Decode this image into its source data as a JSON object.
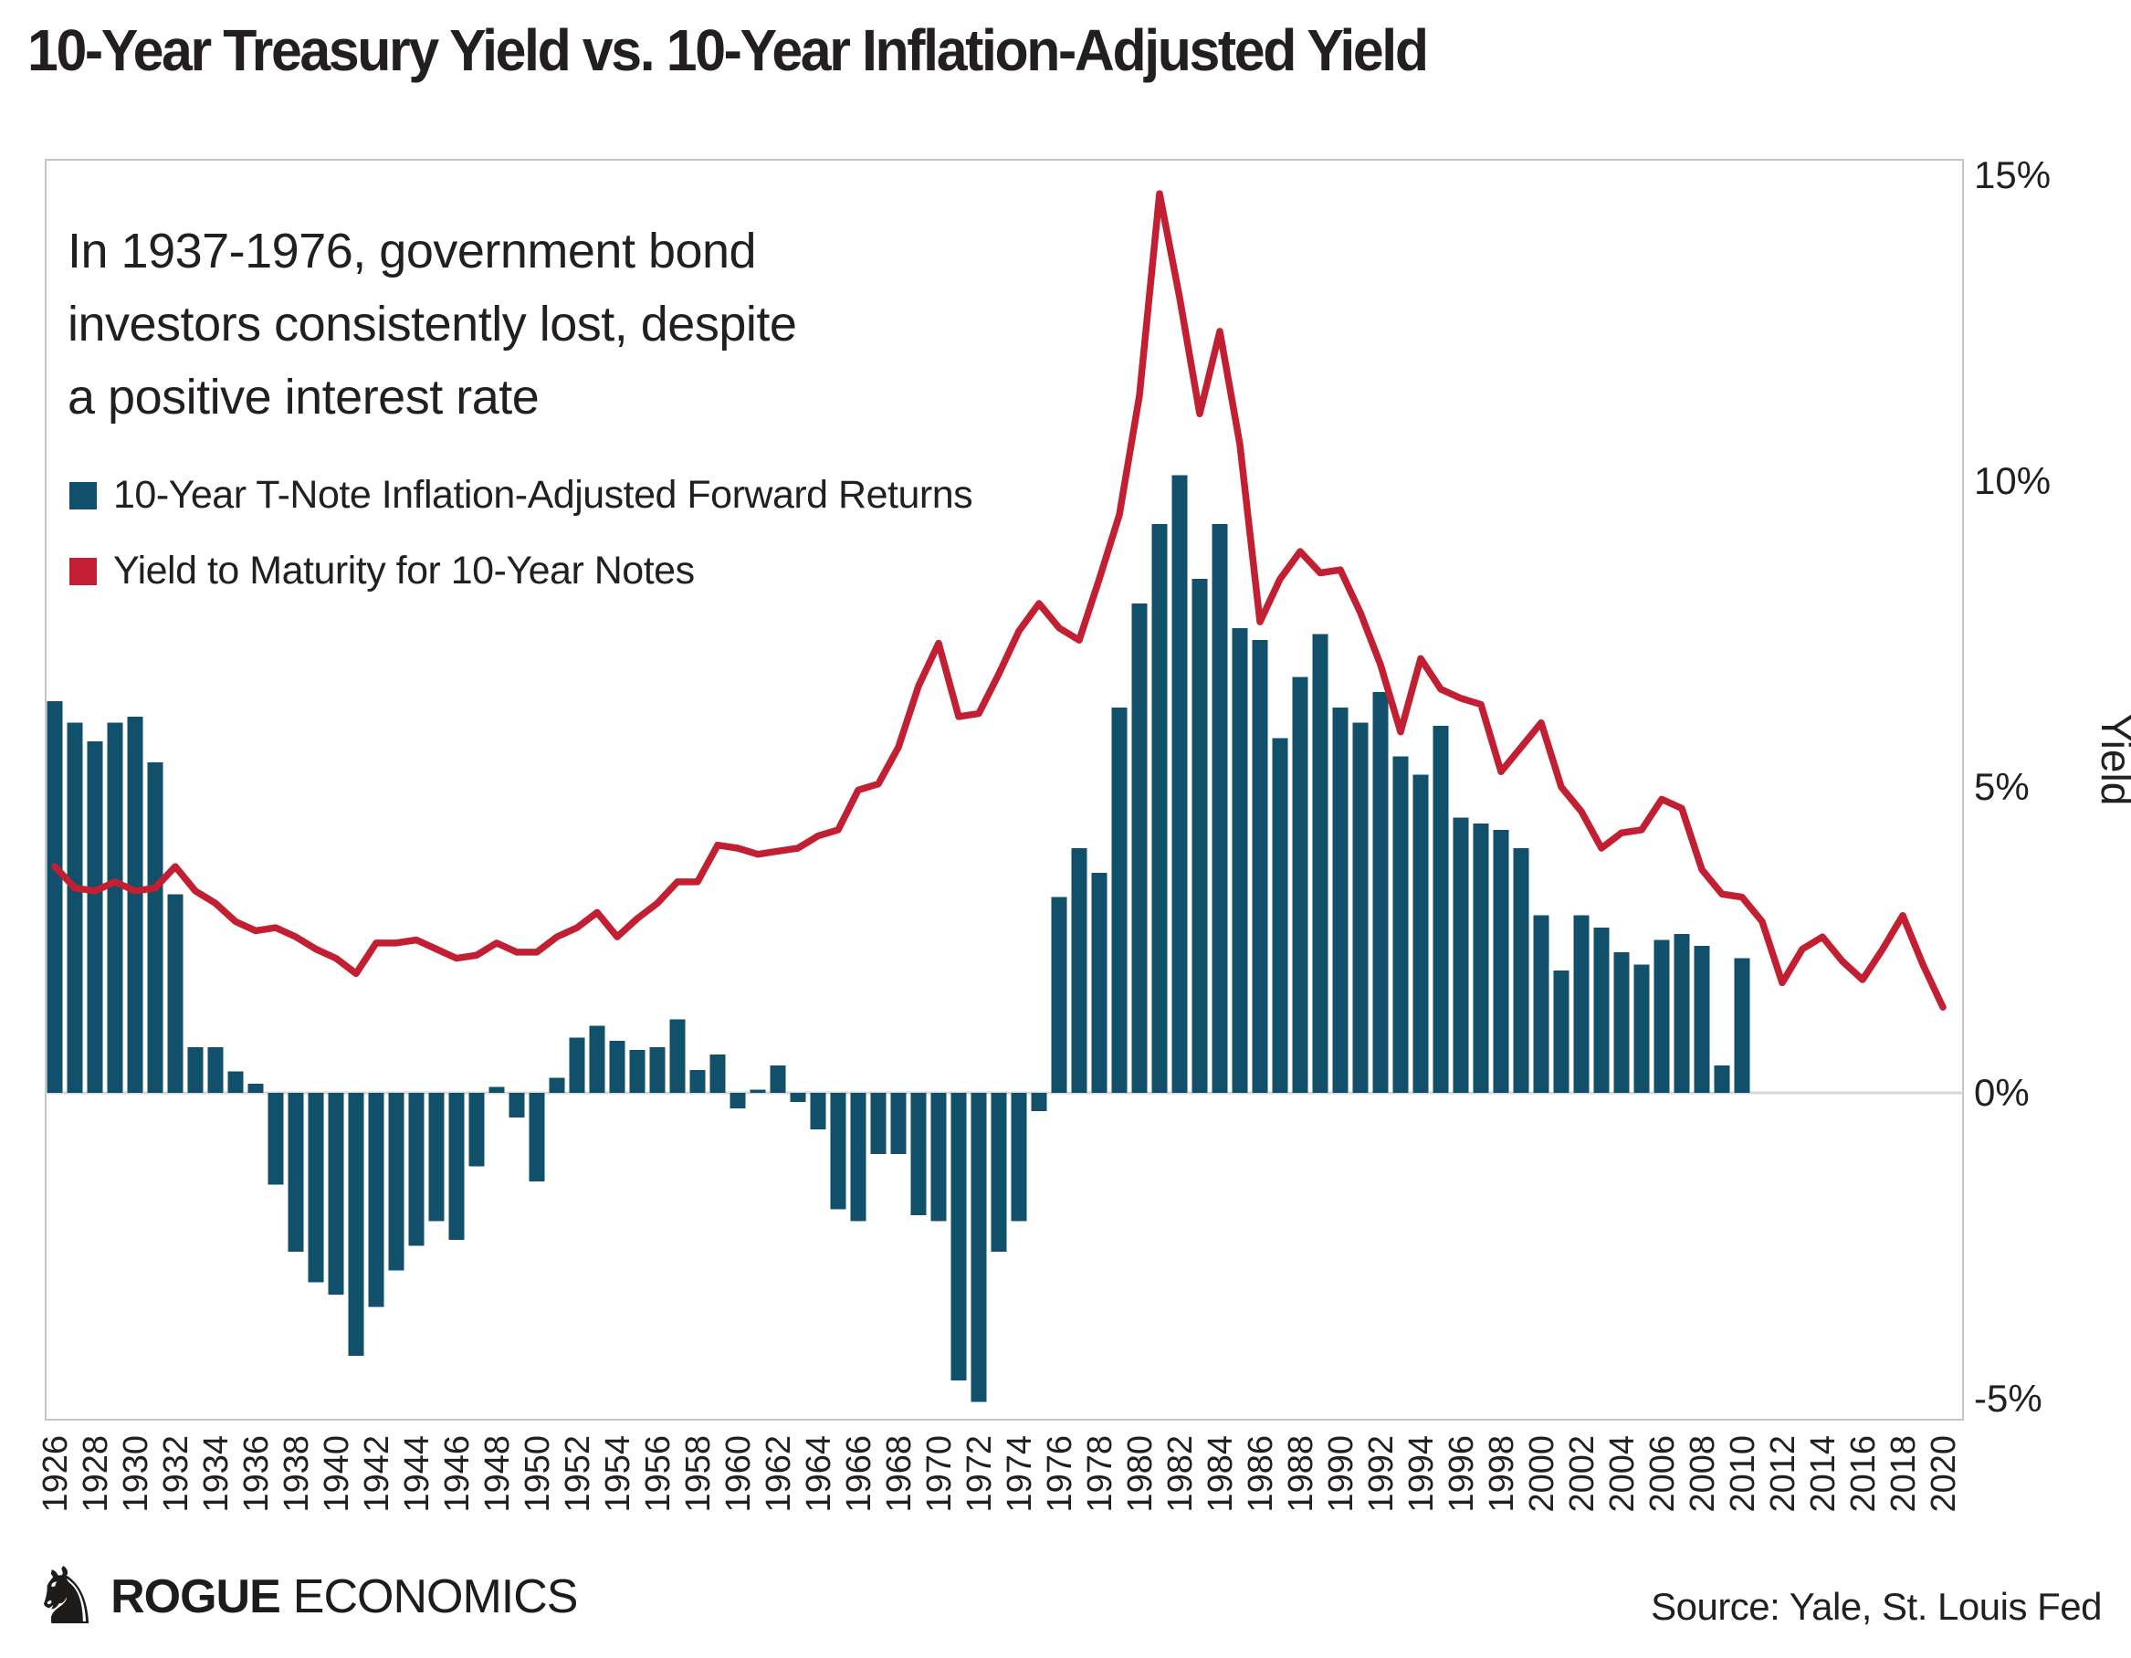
{
  "header": {
    "title": "10-Year Treasury Yield vs. 10-Year Inflation-Adjusted Yield"
  },
  "annotation": {
    "line1": "In 1937-1976, government bond",
    "line2": "investors consistently lost, despite",
    "line3": "a positive interest rate"
  },
  "legend": {
    "items": [
      {
        "label": "10-Year T-Note Inflation-Adjusted Forward Returns",
        "color": "#11506a"
      },
      {
        "label": "Yield to Maturity for 10-Year Notes",
        "color": "#c22032"
      }
    ]
  },
  "footer": {
    "knight_icon": "♞",
    "logo_text_bold": "ROGUE",
    "logo_text_light": "ECONOMICS",
    "source": "Source: Yale, St. Louis Fed"
  },
  "chart_data": {
    "type": "bar+line",
    "title": "10-Year Treasury Yield vs. 10-Year Inflation-Adjusted Yield",
    "ylabel": "Yield",
    "xlabel": "",
    "ylim": [
      -5.5,
      15.3
    ],
    "xlim": [
      1925.5,
      2021
    ],
    "grid": "horizontal zero line only",
    "legend_position": "top-left inside plot",
    "y_ticks": [
      {
        "value": 15,
        "label": "15%"
      },
      {
        "value": 10,
        "label": "10%"
      },
      {
        "value": 5,
        "label": "5%"
      },
      {
        "value": 0,
        "label": "0%"
      },
      {
        "value": -5,
        "label": "-5%"
      }
    ],
    "x_tick_years": [
      1926,
      1928,
      1930,
      1932,
      1934,
      1936,
      1938,
      1940,
      1942,
      1944,
      1946,
      1948,
      1950,
      1952,
      1954,
      1956,
      1958,
      1960,
      1962,
      1964,
      1966,
      1968,
      1970,
      1972,
      1974,
      1976,
      1978,
      1980,
      1982,
      1984,
      1986,
      1988,
      1990,
      1992,
      1994,
      1996,
      1998,
      2000,
      2002,
      2004,
      2006,
      2008,
      2010,
      2012,
      2014,
      2016,
      2018,
      2020
    ],
    "series": [
      {
        "name": "10-Year T-Note Inflation-Adjusted Forward Returns",
        "type": "bar",
        "color": "#11506a",
        "x": [
          1926,
          1927,
          1928,
          1929,
          1930,
          1931,
          1932,
          1933,
          1934,
          1935,
          1936,
          1937,
          1938,
          1939,
          1940,
          1941,
          1942,
          1943,
          1944,
          1945,
          1946,
          1947,
          1948,
          1949,
          1950,
          1951,
          1952,
          1953,
          1954,
          1955,
          1956,
          1957,
          1958,
          1959,
          1960,
          1961,
          1962,
          1963,
          1964,
          1965,
          1966,
          1967,
          1968,
          1969,
          1970,
          1971,
          1972,
          1973,
          1974,
          1975,
          1976,
          1977,
          1978,
          1979,
          1980,
          1981,
          1982,
          1983,
          1984,
          1985,
          1986,
          1987,
          1988,
          1989,
          1990,
          1991,
          1992,
          1993,
          1994,
          1995,
          1996,
          1997,
          1998,
          1999,
          2000,
          2001,
          2002,
          2003,
          2004,
          2005,
          2006,
          2007,
          2008,
          2009,
          2010
        ],
        "values": [
          6.4,
          6.05,
          5.75,
          6.05,
          6.15,
          5.4,
          3.25,
          0.75,
          0.75,
          0.35,
          0.15,
          -1.5,
          -2.6,
          -3.1,
          -3.3,
          -4.3,
          -3.5,
          -2.9,
          -2.5,
          -2.1,
          -2.4,
          -1.2,
          0.1,
          -0.4,
          -1.45,
          0.25,
          0.9,
          1.1,
          0.85,
          0.7,
          0.75,
          1.2,
          0.37,
          0.63,
          -0.25,
          0.05,
          0.45,
          -0.15,
          -0.6,
          -1.9,
          -2.1,
          -1.0,
          -1.0,
          -2.0,
          -2.1,
          -4.7,
          -5.05,
          -2.6,
          -2.1,
          -0.3,
          3.2,
          4.0,
          3.6,
          6.3,
          8.0,
          9.3,
          10.1,
          8.4,
          9.3,
          7.6,
          7.4,
          5.8,
          6.8,
          7.5,
          6.3,
          6.05,
          6.55,
          5.5,
          5.2,
          6.0,
          4.5,
          4.4,
          4.3,
          4.0,
          2.9,
          2.0,
          2.9,
          2.7,
          2.3,
          2.1,
          2.5,
          2.6,
          2.4,
          0.45,
          2.2
        ]
      },
      {
        "name": "Yield to Maturity for 10-Year Notes",
        "type": "line",
        "color": "#c22032",
        "x": [
          1926,
          1927,
          1928,
          1929,
          1930,
          1931,
          1932,
          1933,
          1934,
          1935,
          1936,
          1937,
          1938,
          1939,
          1940,
          1941,
          1942,
          1943,
          1944,
          1945,
          1946,
          1947,
          1948,
          1949,
          1950,
          1951,
          1952,
          1953,
          1954,
          1955,
          1956,
          1957,
          1958,
          1959,
          1960,
          1961,
          1962,
          1963,
          1964,
          1965,
          1966,
          1967,
          1968,
          1969,
          1970,
          1971,
          1972,
          1973,
          1974,
          1975,
          1976,
          1977,
          1978,
          1979,
          1980,
          1981,
          1982,
          1983,
          1984,
          1985,
          1986,
          1987,
          1988,
          1989,
          1990,
          1991,
          1992,
          1993,
          1994,
          1995,
          1996,
          1997,
          1998,
          1999,
          2000,
          2001,
          2002,
          2003,
          2004,
          2005,
          2006,
          2007,
          2008,
          2009,
          2010,
          2011,
          2012,
          2013,
          2014,
          2015,
          2016,
          2017,
          2018,
          2019,
          2020
        ],
        "values": [
          3.7,
          3.35,
          3.3,
          3.45,
          3.3,
          3.35,
          3.7,
          3.3,
          3.1,
          2.8,
          2.65,
          2.7,
          2.55,
          2.35,
          2.2,
          1.95,
          2.45,
          2.45,
          2.5,
          2.35,
          2.2,
          2.25,
          2.45,
          2.3,
          2.3,
          2.55,
          2.7,
          2.95,
          2.55,
          2.85,
          3.1,
          3.45,
          3.45,
          4.05,
          4.0,
          3.9,
          3.95,
          4.0,
          4.2,
          4.3,
          4.95,
          5.05,
          5.65,
          6.65,
          7.35,
          6.15,
          6.2,
          6.85,
          7.55,
          8.0,
          7.6,
          7.4,
          8.4,
          9.45,
          11.4,
          14.7,
          13.0,
          11.1,
          12.45,
          10.6,
          7.7,
          8.4,
          8.85,
          8.5,
          8.55,
          7.85,
          7.0,
          5.9,
          7.1,
          6.6,
          6.45,
          6.35,
          5.25,
          5.65,
          6.05,
          5.0,
          4.6,
          4.0,
          4.25,
          4.3,
          4.8,
          4.65,
          3.65,
          3.25,
          3.2,
          2.8,
          1.8,
          2.35,
          2.55,
          2.15,
          1.85,
          2.35,
          2.9,
          2.1,
          1.4
        ]
      }
    ]
  }
}
